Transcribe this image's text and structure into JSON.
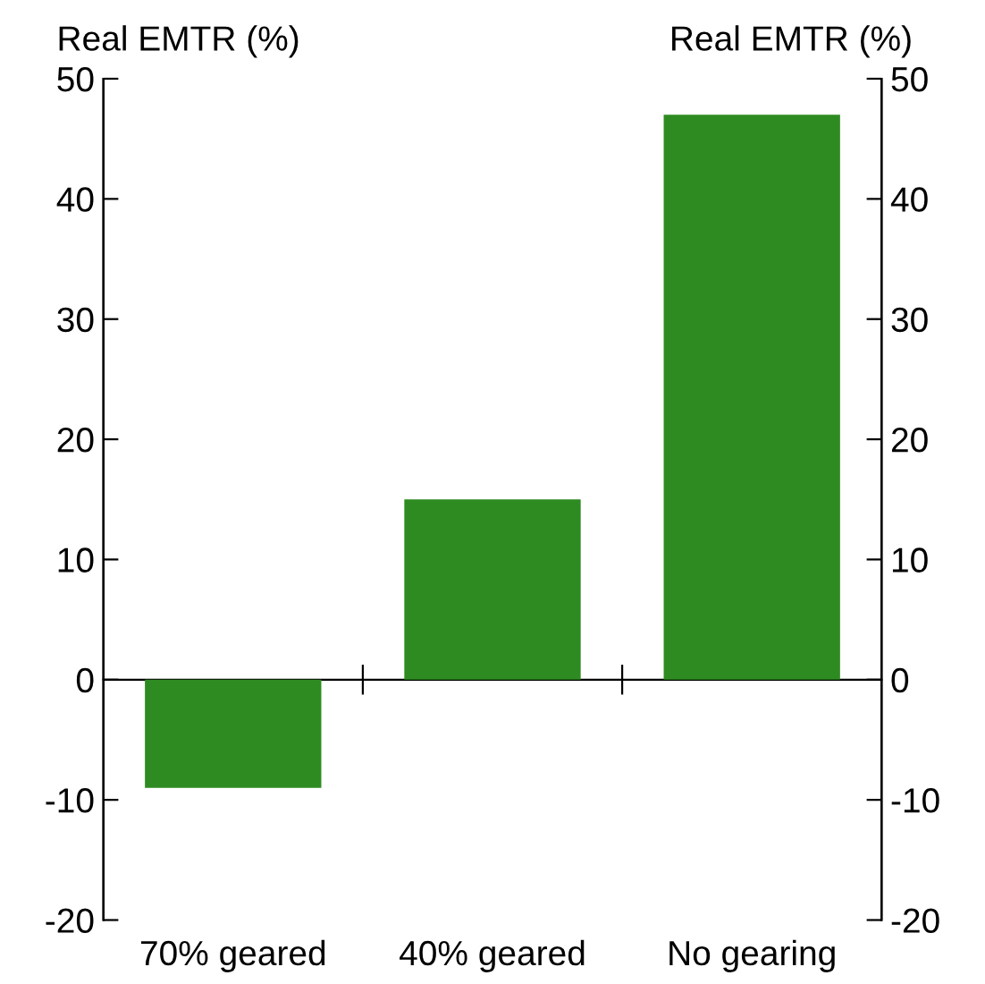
{
  "chart_data": {
    "type": "bar",
    "ylabel": "Real EMTR (%)",
    "y2label": "Real EMTR (%)",
    "categories": [
      "70% geared",
      "40% geared",
      "No gearing"
    ],
    "values": [
      -9,
      15,
      47
    ],
    "color": "#2e8b21",
    "ylim": [
      -20,
      50
    ],
    "yticks": [
      -20,
      -10,
      0,
      10,
      20,
      30,
      40,
      50
    ],
    "y2lim": [
      -20,
      50
    ],
    "y2ticks": [
      -20,
      -10,
      0,
      10,
      20,
      30,
      40,
      50
    ]
  }
}
